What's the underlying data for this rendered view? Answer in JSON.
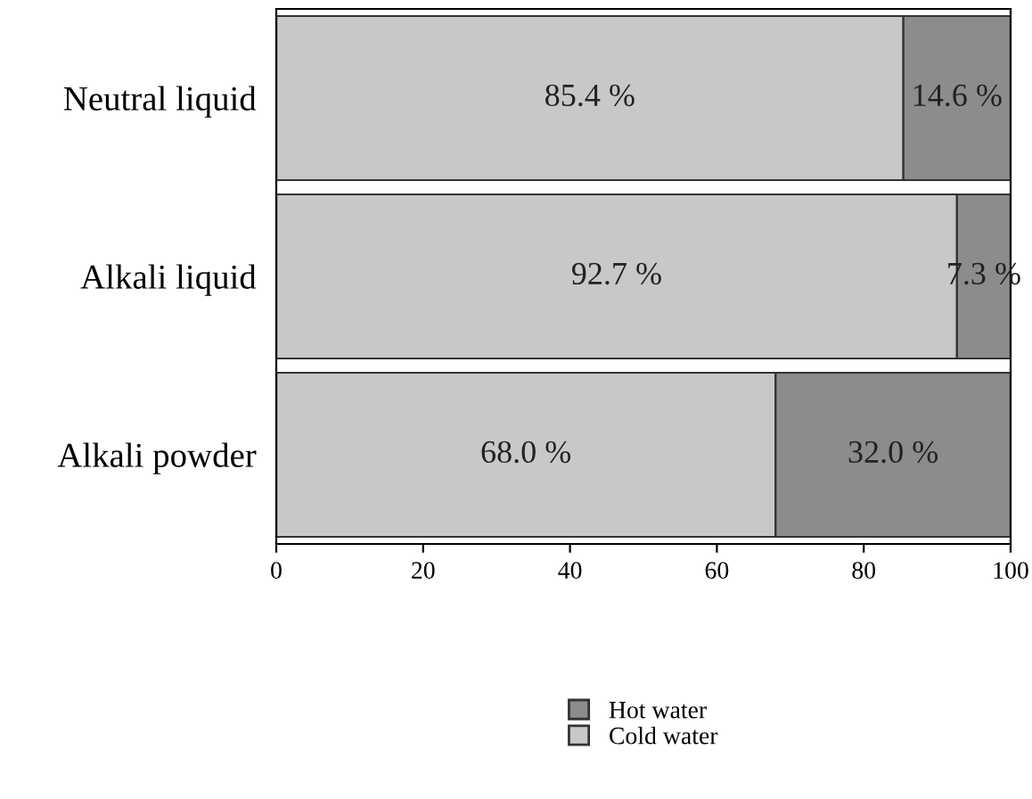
{
  "chart_data": {
    "type": "bar",
    "orientation": "horizontal",
    "stacked": true,
    "categories": [
      "Neutral liquid",
      "Alkali liquid",
      "Alkali powder"
    ],
    "series": [
      {
        "name": "Cold water",
        "color": "#c8c8c8",
        "values": [
          85.4,
          92.7,
          68.0
        ],
        "value_labels": [
          "85.4 %",
          "92.7 %",
          "68.0 %"
        ]
      },
      {
        "name": "Hot water",
        "color": "#8c8c8c",
        "values": [
          14.6,
          7.3,
          32.0
        ],
        "value_labels": [
          "14.6 %",
          "7.3 %",
          "32.0 %"
        ]
      }
    ],
    "xlim": [
      0,
      100
    ],
    "xticks": [
      0,
      20,
      40,
      60,
      80,
      100
    ],
    "grid": false,
    "legend": "bottom"
  }
}
